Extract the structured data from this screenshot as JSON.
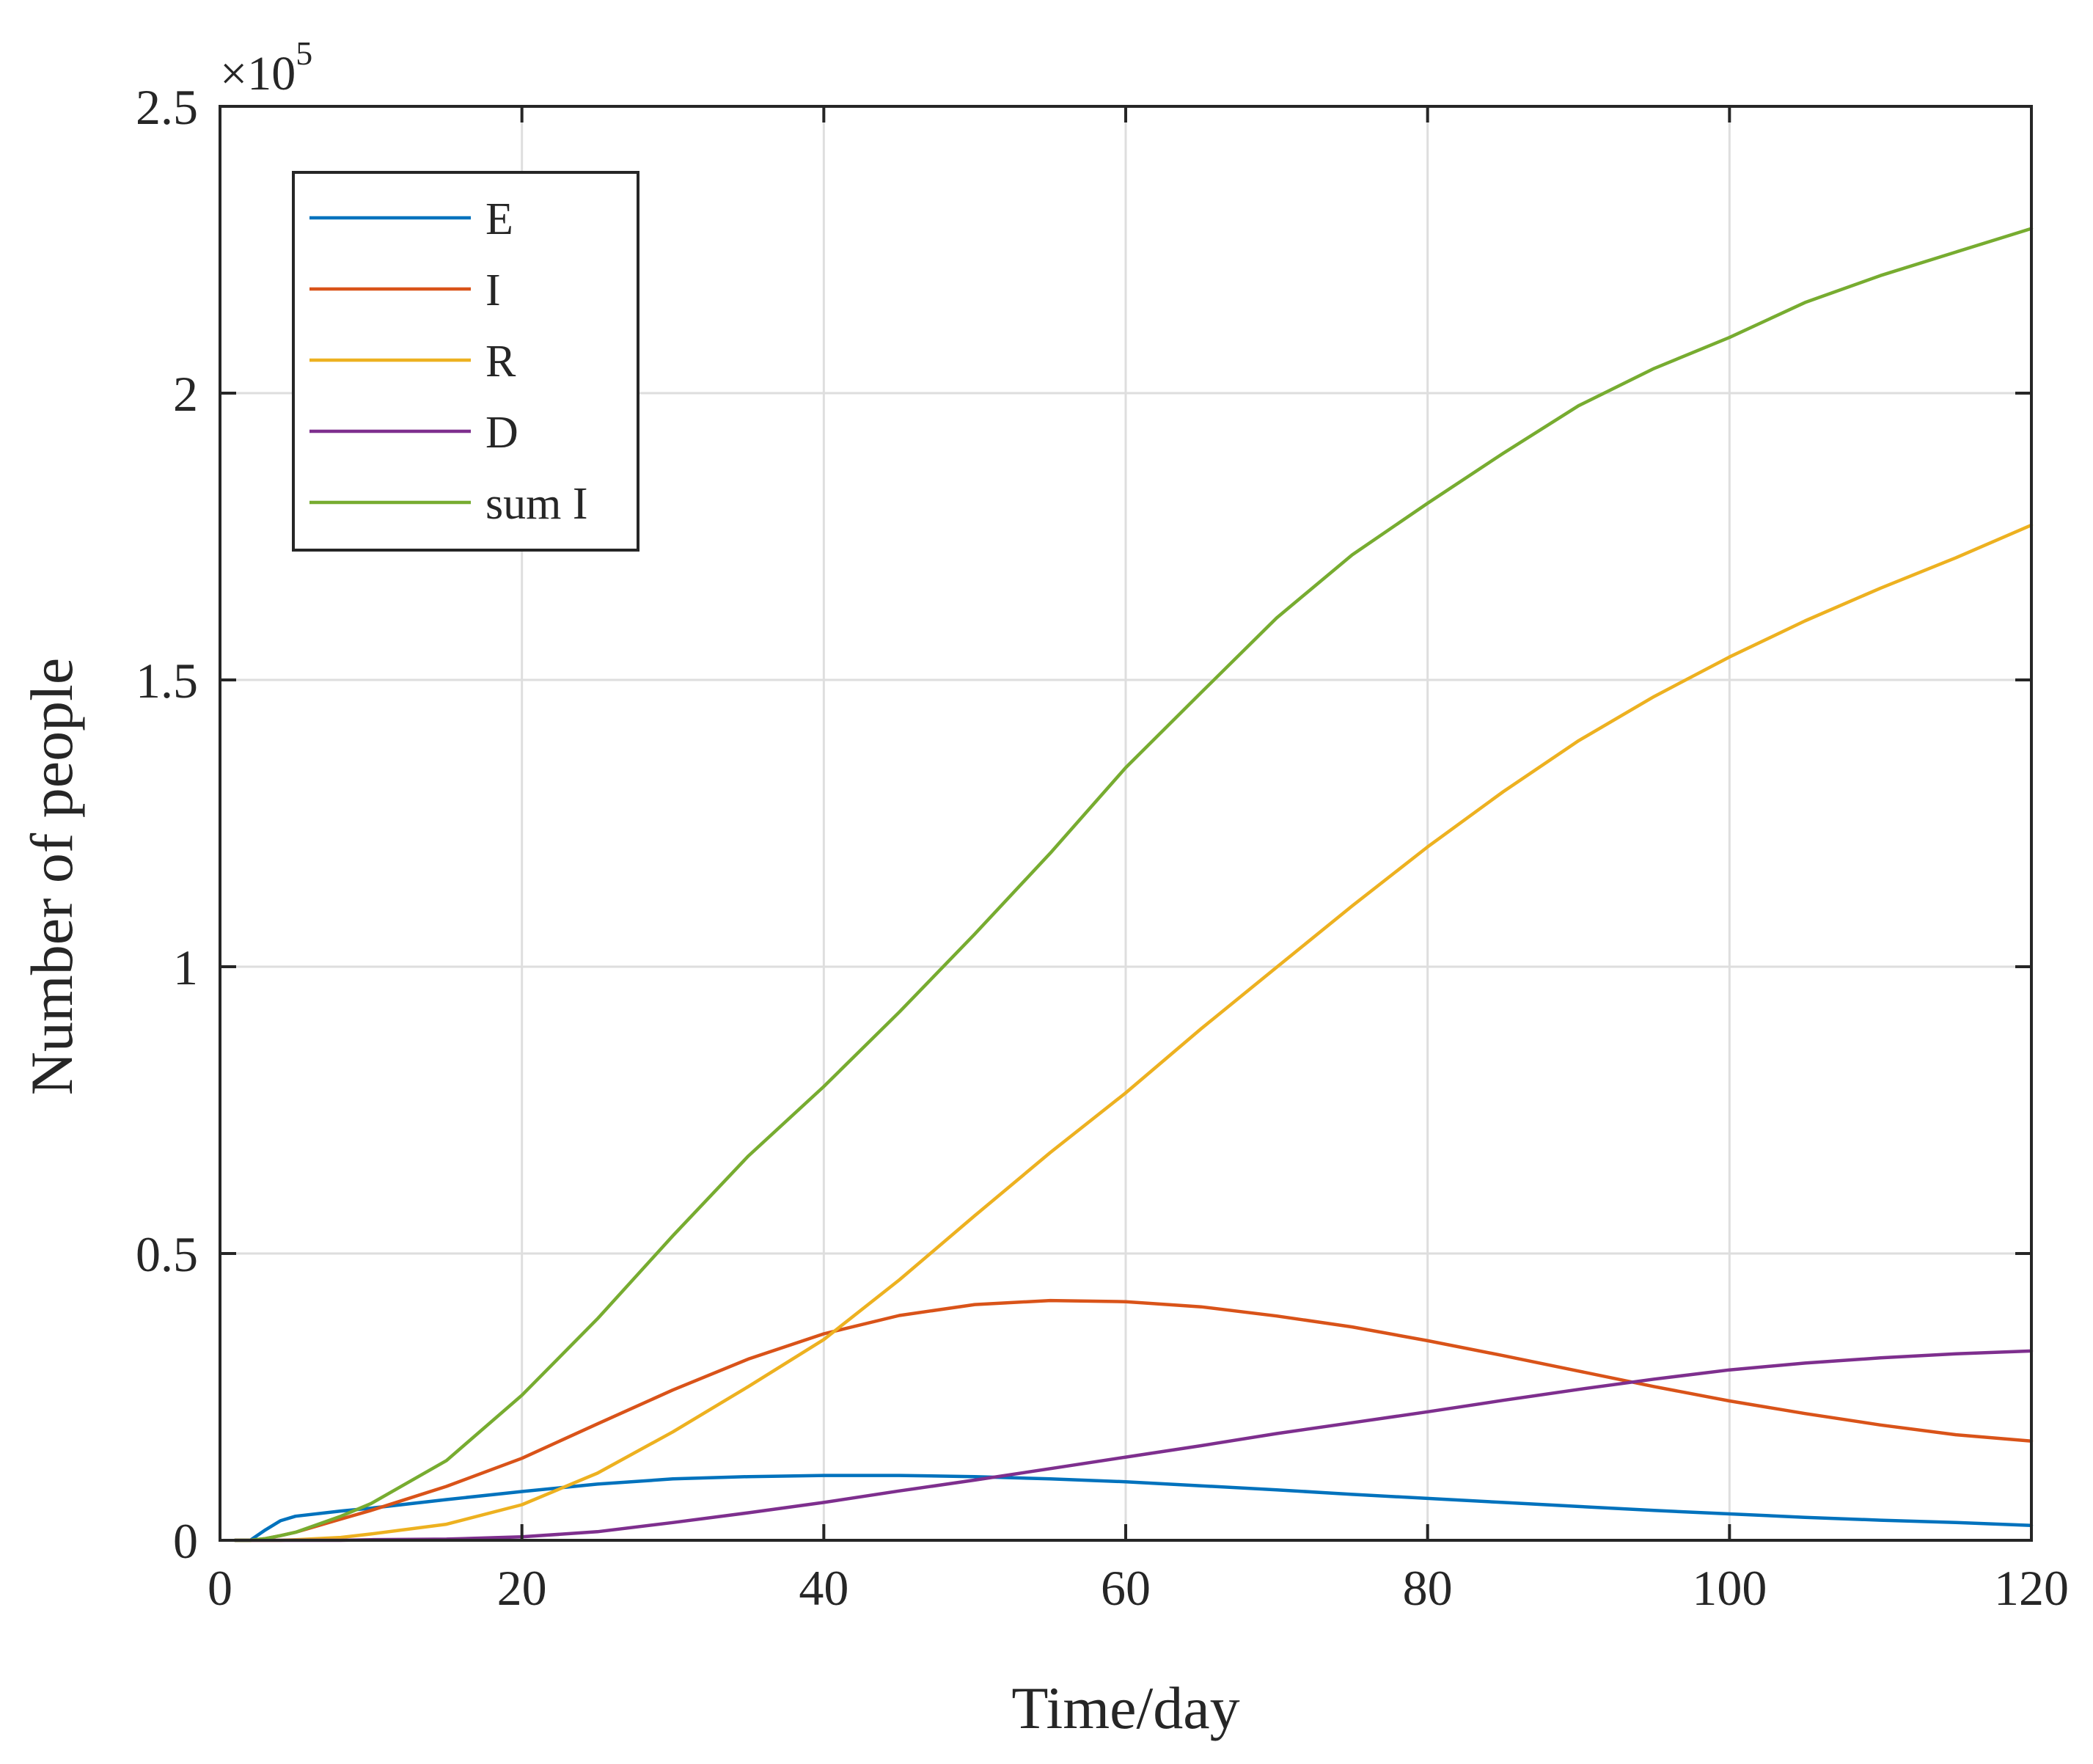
{
  "chart_data": {
    "type": "line",
    "xlabel": "Time/day",
    "ylabel": "Number of people",
    "y_multiplier": "×10",
    "y_multiplier_exponent": "5",
    "xlim": [
      0,
      120
    ],
    "ylim": [
      0,
      2.5
    ],
    "xticks": [
      0,
      20,
      40,
      60,
      80,
      100,
      120
    ],
    "yticks": [
      0,
      0.5,
      1,
      1.5,
      2,
      2.5
    ],
    "xtick_labels": [
      "0",
      "20",
      "40",
      "60",
      "80",
      "100",
      "120"
    ],
    "ytick_labels": [
      "0",
      "0.5",
      "1",
      "1.5",
      "2",
      "2.5"
    ],
    "grid": true,
    "legend_position": "top-left",
    "x": [
      1,
      2,
      3,
      4,
      5,
      8,
      10,
      15,
      20,
      25,
      30,
      35,
      40,
      45,
      50,
      55,
      60,
      65,
      70,
      75,
      80,
      85,
      90,
      95,
      100,
      105,
      110,
      115,
      120
    ],
    "series": [
      {
        "name": "E",
        "color": "#0072BD",
        "values": [
          0,
          0,
          0.018,
          0.034,
          0.042,
          0.051,
          0.056,
          0.071,
          0.085,
          0.098,
          0.107,
          0.111,
          0.113,
          0.113,
          0.111,
          0.107,
          0.102,
          0.095,
          0.088,
          0.08,
          0.073,
          0.066,
          0.059,
          0.052,
          0.046,
          0.04,
          0.035,
          0.031,
          0.026
        ]
      },
      {
        "name": "I",
        "color": "#D95319",
        "values": [
          0,
          0,
          0.003,
          0.008,
          0.014,
          0.037,
          0.052,
          0.094,
          0.143,
          0.203,
          0.262,
          0.316,
          0.36,
          0.392,
          0.411,
          0.418,
          0.416,
          0.407,
          0.391,
          0.372,
          0.348,
          0.322,
          0.295,
          0.268,
          0.243,
          0.221,
          0.201,
          0.184,
          0.173
        ]
      },
      {
        "name": "R",
        "color": "#EDB120",
        "values": [
          0,
          0,
          0,
          0,
          0.001,
          0.005,
          0.011,
          0.028,
          0.062,
          0.117,
          0.189,
          0.268,
          0.35,
          0.454,
          0.566,
          0.676,
          0.78,
          0.892,
          0.999,
          1.106,
          1.209,
          1.305,
          1.394,
          1.471,
          1.54,
          1.603,
          1.66,
          1.713,
          1.77
        ]
      },
      {
        "name": "D",
        "color": "#7E2F8E",
        "values": [
          0,
          0,
          0,
          0,
          0,
          0,
          0.001,
          0.002,
          0.006,
          0.015,
          0.031,
          0.048,
          0.066,
          0.086,
          0.105,
          0.125,
          0.145,
          0.165,
          0.186,
          0.205,
          0.224,
          0.244,
          0.263,
          0.281,
          0.297,
          0.309,
          0.318,
          0.325,
          0.33
        ]
      },
      {
        "name": "sum I",
        "color": "#77AC30",
        "values": [
          0,
          0,
          0.003,
          0.008,
          0.014,
          0.042,
          0.064,
          0.139,
          0.253,
          0.386,
          0.531,
          0.67,
          0.791,
          0.921,
          1.057,
          1.198,
          1.347,
          1.478,
          1.608,
          1.718,
          1.808,
          1.895,
          1.978,
          2.043,
          2.097,
          2.158,
          2.205,
          2.246,
          2.287
        ]
      }
    ]
  }
}
